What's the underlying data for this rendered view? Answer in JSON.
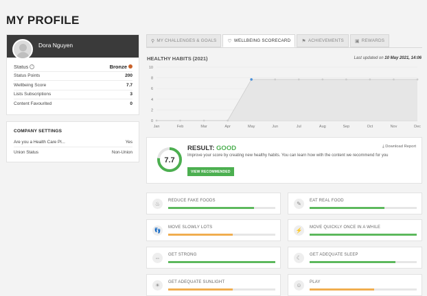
{
  "page": {
    "title": "MY PROFILE"
  },
  "profile": {
    "name": "Dora Nguyen",
    "stats": [
      {
        "label": "Status",
        "value": "Bronze"
      },
      {
        "label": "Status Points",
        "value": "200"
      },
      {
        "label": "Wellbeing Score",
        "value": "7.7"
      },
      {
        "label": "Lists Subscriptions",
        "value": "3"
      },
      {
        "label": "Content Favourited",
        "value": "0"
      }
    ],
    "status_color": "#c9622a"
  },
  "company": {
    "title": "COMPANY SETTINGS",
    "rows": [
      {
        "label": "Are you a Health Care Pl...",
        "value": "Yes"
      },
      {
        "label": "Union Status",
        "value": "Non-Union"
      }
    ]
  },
  "tabs": [
    {
      "label": "MY CHALLENGES & GOALS",
      "icon": "runner-icon",
      "active": false
    },
    {
      "label": "WELLBEING SCORECARD",
      "icon": "heart-icon",
      "active": true
    },
    {
      "label": "ACHIEVEMENTS",
      "icon": "badge-icon",
      "active": false
    },
    {
      "label": "REWARDS",
      "icon": "gift-icon",
      "active": false
    }
  ],
  "habits_section": {
    "title": "HEALTHY HABITS (2021)",
    "updated_prefix": "Last updated on",
    "updated_value": "10 May 2021, 14:06"
  },
  "chart_data": {
    "type": "area",
    "categories": [
      "Jan",
      "Feb",
      "Mar",
      "Apr",
      "May",
      "Jun",
      "Jul",
      "Aug",
      "Sep",
      "Oct",
      "Nov",
      "Dec"
    ],
    "values": [
      0,
      0,
      0,
      0,
      7.7,
      7.7,
      7.7,
      7.7,
      7.7,
      7.7,
      7.7,
      7.7
    ],
    "highlight_index": 4,
    "ylim": [
      0,
      10
    ],
    "yticks": [
      "0",
      "2",
      "4",
      "6",
      "8",
      "10"
    ],
    "grid": true,
    "colors": {
      "area": "#e6e6e6",
      "line": "#cccccc",
      "point": "#cccccc",
      "highlight": "#4a90d9"
    }
  },
  "result": {
    "score": "7.7",
    "score_value": 7.7,
    "score_max": 10,
    "label": "RESULT:",
    "rating": "GOOD",
    "description": "Improve your score by creating new healthy habits. You can learn how with the content we recommend for you",
    "button_label": "VIEW RECOMMENDED",
    "download_label": "Download Report",
    "accent": "#4caf50"
  },
  "habits": [
    {
      "label": "REDUCE FAKE FOODS",
      "progress": 0.8,
      "color": "#5cb85c",
      "icon": "cupcake-icon",
      "glyph": "♨"
    },
    {
      "label": "EAT REAL FOOD",
      "progress": 0.7,
      "color": "#5cb85c",
      "icon": "carrot-icon",
      "glyph": "✎"
    },
    {
      "label": "MOVE SLOWLY LOTS",
      "progress": 0.6,
      "color": "#f0ad4e",
      "icon": "footsteps-icon",
      "glyph": "👣"
    },
    {
      "label": "MOVE QUICKLY ONCE IN A WHILE",
      "progress": 1.0,
      "color": "#5cb85c",
      "icon": "sneaker-icon",
      "glyph": "⚡"
    },
    {
      "label": "GET STRONG",
      "progress": 1.0,
      "color": "#5cb85c",
      "icon": "dumbbell-icon",
      "glyph": "⇔"
    },
    {
      "label": "GET ADEQUATE SLEEP",
      "progress": 0.8,
      "color": "#5cb85c",
      "icon": "moon-icon",
      "glyph": "☾"
    },
    {
      "label": "GET ADEQUATE SUNLIGHT",
      "progress": 0.6,
      "color": "#f0ad4e",
      "icon": "sun-icon",
      "glyph": "☀"
    },
    {
      "label": "PLAY",
      "progress": 0.6,
      "color": "#f0ad4e",
      "icon": "smile-icon",
      "glyph": "☺"
    }
  ]
}
